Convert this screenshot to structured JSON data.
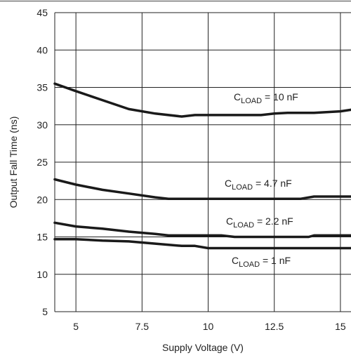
{
  "chart_data": {
    "type": "line",
    "title": "",
    "xlabel": "Supply Voltage (V)",
    "ylabel": "Output Fall Time (ns)",
    "xlim": [
      4.2,
      15.4
    ],
    "ylim": [
      5,
      45
    ],
    "x_ticks": [
      5,
      7.5,
      10,
      12.5,
      15
    ],
    "x_tick_labels": [
      "5",
      "7.5",
      "10",
      "12.5",
      "15"
    ],
    "y_ticks": [
      5,
      10,
      15,
      20,
      25,
      30,
      35,
      40,
      45
    ],
    "y_tick_labels": [
      "5",
      "10",
      "15",
      "20",
      "25",
      "30",
      "35",
      "40",
      "45"
    ],
    "grid": true,
    "series": [
      {
        "label_base": "C",
        "label_sub": "LOAD",
        "label_rest": " = 10 nF",
        "x": [
          4.2,
          5.0,
          6.0,
          7.0,
          8.0,
          9.0,
          9.5,
          10.0,
          11.0,
          12.0,
          12.5,
          13.0,
          14.0,
          15.0,
          15.4
        ],
        "y": [
          35.5,
          34.5,
          33.3,
          32.1,
          31.5,
          31.1,
          31.3,
          31.3,
          31.3,
          31.3,
          31.5,
          31.6,
          31.6,
          31.8,
          32.0
        ]
      },
      {
        "label_base": "C",
        "label_sub": "LOAD",
        "label_rest": " = 4.7 nF",
        "x": [
          4.2,
          5.0,
          6.0,
          7.0,
          8.0,
          8.5,
          9.0,
          10.0,
          11.0,
          12.0,
          13.0,
          13.5,
          14.0,
          15.0,
          15.4
        ],
        "y": [
          22.7,
          22.0,
          21.3,
          20.8,
          20.3,
          20.1,
          20.1,
          20.1,
          20.1,
          20.1,
          20.1,
          20.1,
          20.4,
          20.4,
          20.4
        ]
      },
      {
        "label_base": "C",
        "label_sub": "LOAD",
        "label_rest": " = 2.2 nF",
        "x": [
          4.2,
          5.0,
          6.0,
          7.0,
          8.0,
          8.5,
          9.0,
          10.0,
          10.5,
          11.0,
          12.0,
          13.0,
          13.8,
          14.0,
          15.0,
          15.4
        ],
        "y": [
          16.9,
          16.4,
          16.1,
          15.7,
          15.4,
          15.2,
          15.2,
          15.2,
          15.2,
          15.0,
          15.0,
          15.0,
          15.0,
          15.2,
          15.2,
          15.2
        ]
      },
      {
        "label_base": "C",
        "label_sub": "LOAD",
        "label_rest": " = 1 nF",
        "x": [
          4.2,
          5.0,
          6.0,
          7.0,
          8.0,
          9.0,
          9.5,
          10.0,
          11.0,
          12.0,
          13.0,
          14.0,
          15.0,
          15.4
        ],
        "y": [
          14.7,
          14.7,
          14.5,
          14.4,
          14.1,
          13.8,
          13.8,
          13.5,
          13.5,
          13.5,
          13.5,
          13.5,
          13.5,
          13.5
        ]
      }
    ]
  }
}
